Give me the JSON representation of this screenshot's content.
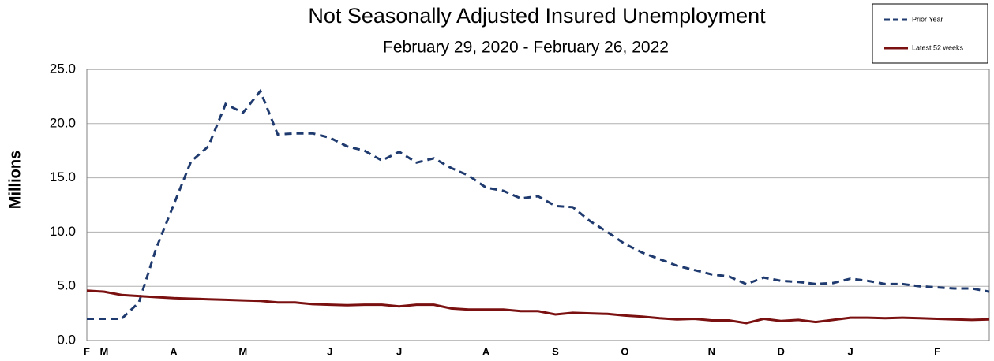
{
  "chart_data": {
    "type": "line",
    "title": "Not Seasonally Adjusted Insured Unemployment",
    "subtitle": "February 29, 2020 - February 26, 2022",
    "y_label": "Millions",
    "categories": [
      "F",
      "M",
      null,
      null,
      null,
      "A",
      null,
      null,
      null,
      "M",
      null,
      null,
      null,
      null,
      "J",
      null,
      null,
      null,
      "J",
      null,
      null,
      null,
      null,
      "A",
      null,
      null,
      null,
      "S",
      null,
      null,
      null,
      "O",
      null,
      null,
      null,
      null,
      "N",
      null,
      null,
      null,
      "D",
      null,
      null,
      null,
      "J",
      null,
      null,
      null,
      null,
      "F",
      null,
      null,
      null
    ],
    "series": [
      {
        "name": "Prior Year",
        "color": "#1f3a6e",
        "dashed": true,
        "values": [
          2.0,
          2.0,
          2.0,
          3.5,
          8.5,
          12.5,
          16.5,
          17.9,
          21.8,
          21.0,
          23.0,
          19.0,
          19.1,
          19.1,
          18.7,
          17.9,
          17.5,
          16.6,
          17.4,
          16.4,
          16.8,
          15.9,
          15.2,
          14.1,
          13.8,
          13.1,
          13.3,
          12.4,
          12.3,
          11.0,
          10.0,
          8.9,
          8.1,
          7.5,
          6.9,
          6.5,
          6.1,
          5.9,
          5.2,
          5.8,
          5.5,
          5.4,
          5.2,
          5.3,
          5.7,
          5.5,
          5.2,
          5.2,
          5.0,
          4.9,
          4.8,
          4.8,
          4.5
        ]
      },
      {
        "name": "Latest 52 weeks",
        "color": "#7b1010",
        "dashed": false,
        "values": [
          4.6,
          4.5,
          4.2,
          4.1,
          4.0,
          3.9,
          3.85,
          3.8,
          3.75,
          3.7,
          3.65,
          3.5,
          3.5,
          3.35,
          3.3,
          3.25,
          3.3,
          3.3,
          3.15,
          3.3,
          3.3,
          2.95,
          2.85,
          2.85,
          2.85,
          2.7,
          2.7,
          2.4,
          2.55,
          2.5,
          2.45,
          2.3,
          2.2,
          2.05,
          1.95,
          2.0,
          1.85,
          1.85,
          1.6,
          2.0,
          1.8,
          1.9,
          1.7,
          1.9,
          2.1,
          2.1,
          2.05,
          2.1,
          2.05,
          2.0,
          1.95,
          1.9,
          1.95
        ]
      }
    ],
    "ylim": [
      0,
      25
    ],
    "yticks": [
      {
        "value": 0,
        "label": "0.0"
      },
      {
        "value": 5,
        "label": "5.0"
      },
      {
        "value": 10,
        "label": "10.0"
      },
      {
        "value": 15,
        "label": "15.0"
      },
      {
        "value": 20,
        "label": "20.0"
      },
      {
        "value": 25,
        "label": "25.0"
      }
    ],
    "grid": true,
    "legend": "top-right"
  }
}
